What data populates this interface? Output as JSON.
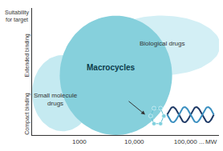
{
  "chart_data": {
    "type": "region",
    "x_label": "MW",
    "y_label": "Suitability\nfor target",
    "log": "x",
    "grid": false,
    "xlim": [
      138,
      350000
    ],
    "xticks": [
      1000,
      {
        "value": 10000,
        "label": "10,000"
      },
      {
        "value": 100000,
        "label": "100,000 ..."
      }
    ],
    "ylim": [
      0,
      1
    ],
    "yticks": [
      {
        "value": 0.16,
        "label": "Compact binding"
      },
      {
        "value": 0.62,
        "label": "Extended binding"
      }
    ],
    "regions": [
      {
        "name": "Biological drugs",
        "color": "#d3eff5",
        "x": [
          2700,
          370000
        ],
        "y": [
          0.47,
          0.94
        ],
        "label_at": [
          31600,
          0.72
        ]
      },
      {
        "name": "Small molecule drugs",
        "color": "#c5eaf1",
        "x": [
          138,
          1800
        ],
        "y": [
          0.03,
          0.63
        ],
        "label_at": [
          372,
          0.28
        ]
      },
      {
        "name": "Macrocycles",
        "color": "#86d0dc",
        "x": [
          440,
          49000
        ],
        "y": [
          0.0,
          0.94
        ],
        "label_at": [
          3700,
          0.53
        ]
      }
    ]
  }
}
